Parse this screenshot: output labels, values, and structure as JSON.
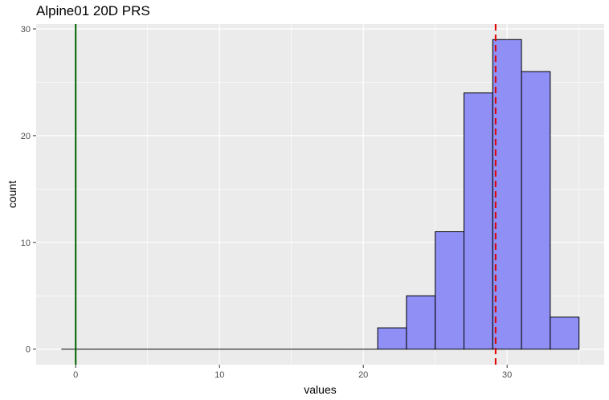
{
  "chart_data": {
    "type": "bar",
    "title": "Alpine01 20D PRS",
    "xlabel": "values",
    "ylabel": "count",
    "xlim": [
      -2.75,
      36.75
    ],
    "ylim": [
      -1.45,
      30.45
    ],
    "x_ticks": [
      0,
      10,
      20,
      30
    ],
    "y_ticks": [
      0,
      10,
      20,
      30
    ],
    "bins": [
      {
        "x0": -1,
        "x1": 1,
        "count": 0
      },
      {
        "x0": 1,
        "x1": 3,
        "count": 0
      },
      {
        "x0": 3,
        "x1": 5,
        "count": 0
      },
      {
        "x0": 5,
        "x1": 7,
        "count": 0
      },
      {
        "x0": 7,
        "x1": 9,
        "count": 0
      },
      {
        "x0": 9,
        "x1": 11,
        "count": 0
      },
      {
        "x0": 11,
        "x1": 13,
        "count": 0
      },
      {
        "x0": 13,
        "x1": 15,
        "count": 0
      },
      {
        "x0": 15,
        "x1": 17,
        "count": 0
      },
      {
        "x0": 17,
        "x1": 19,
        "count": 0
      },
      {
        "x0": 19,
        "x1": 21,
        "count": 0
      },
      {
        "x0": 21,
        "x1": 23,
        "count": 2
      },
      {
        "x0": 23,
        "x1": 25,
        "count": 5
      },
      {
        "x0": 25,
        "x1": 27,
        "count": 11
      },
      {
        "x0": 27,
        "x1": 29,
        "count": 24
      },
      {
        "x0": 29,
        "x1": 31,
        "count": 29
      },
      {
        "x0": 31,
        "x1": 33,
        "count": 26
      },
      {
        "x0": 33,
        "x1": 35,
        "count": 3
      }
    ],
    "reference_lines": [
      {
        "x": 0,
        "style": "solid",
        "color": "#006400"
      },
      {
        "x": 29.2,
        "style": "dashed",
        "color": "#e00000"
      }
    ],
    "grid": true,
    "colors": {
      "panel": "#ebebeb",
      "grid_major": "#ffffff",
      "bar_fill": "#8f8ff5",
      "bar_stroke": "#000000"
    }
  }
}
